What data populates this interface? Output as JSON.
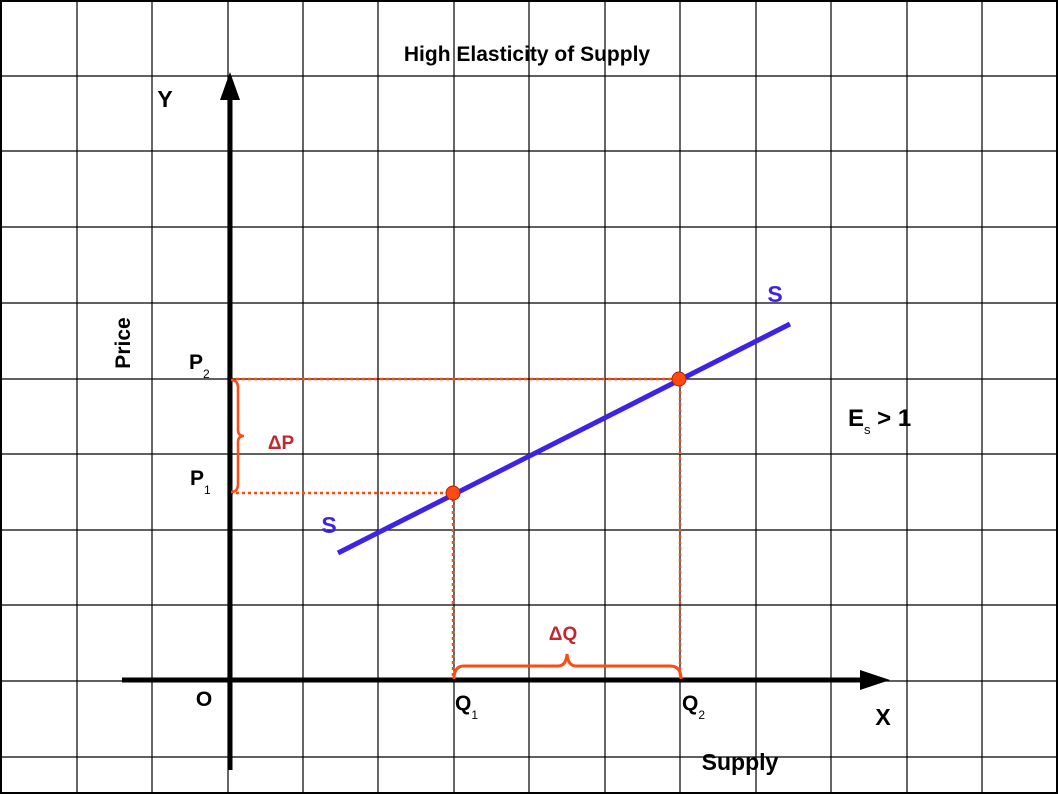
{
  "title": "High Elasticity of Supply",
  "axes": {
    "y_label": "Y",
    "x_label": "X",
    "origin_label": "O",
    "y_axis_title": "Price",
    "x_axis_title": "Supply"
  },
  "curve": {
    "label_start": "S",
    "label_end": "S",
    "color": "#3d23e6"
  },
  "points": {
    "p1": {
      "main": "P",
      "sub": "1"
    },
    "p2": {
      "main": "P",
      "sub": "2"
    },
    "q1": {
      "main": "Q",
      "sub": "1"
    },
    "q2": {
      "main": "Q",
      "sub": "2"
    }
  },
  "deltas": {
    "delta_p": "ΔP",
    "delta_q": "ΔQ",
    "color": "#c0282d",
    "guide_color": "#ff4a12"
  },
  "elasticity": {
    "main": "E",
    "sub": "s",
    "relation": " > 1"
  }
}
